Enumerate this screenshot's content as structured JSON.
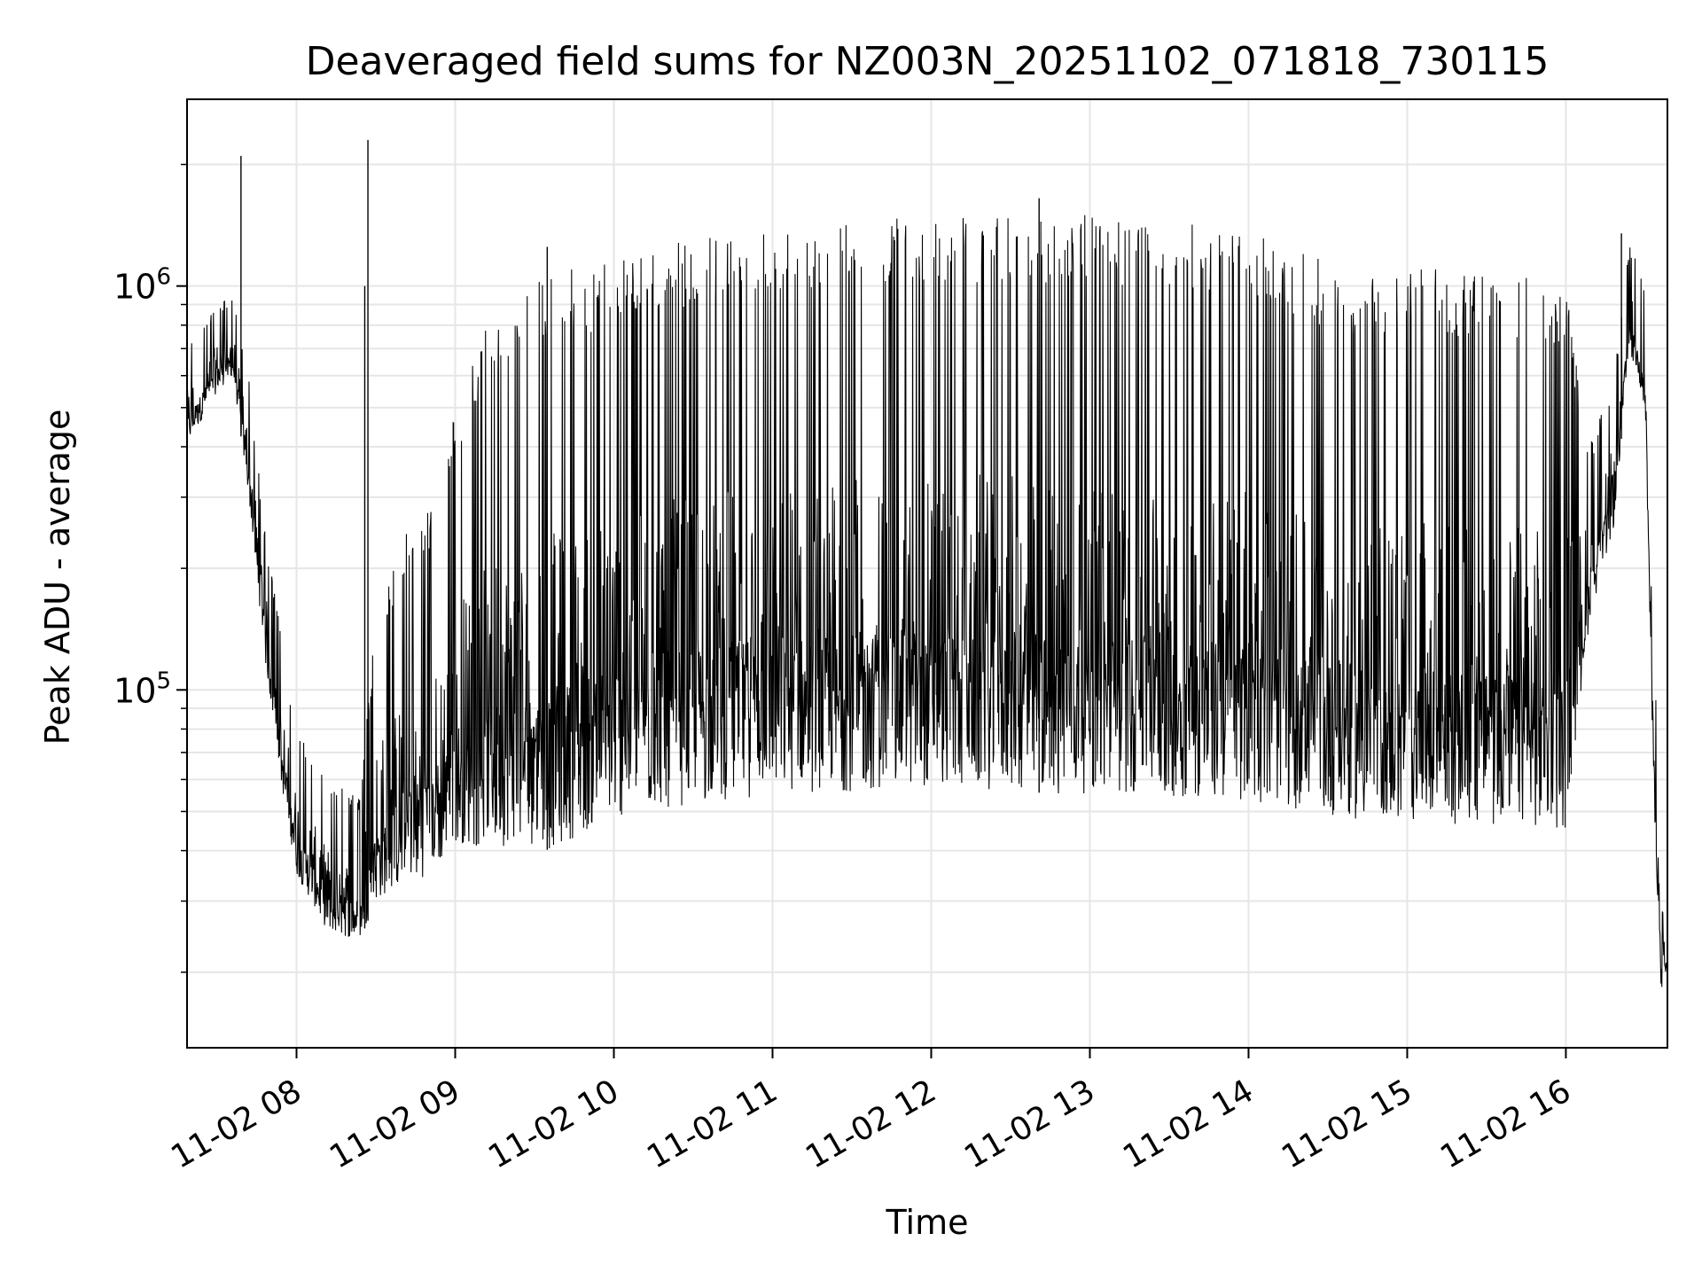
{
  "chart_data": {
    "type": "line",
    "title": "Deaveraged field sums for NZ003N_20251102_071818_730115",
    "xlabel": "Time",
    "ylabel": "Peak ADU - average",
    "yscale": "log",
    "grid": true,
    "x_unit": "hours since 2025-11-02 00:00",
    "xlim": [
      7.31,
      16.64
    ],
    "ylim": [
      13000,
      2900000
    ],
    "x_ticks": [
      {
        "value": 8,
        "label": "11-02 08"
      },
      {
        "value": 9,
        "label": "11-02 09"
      },
      {
        "value": 10,
        "label": "11-02 10"
      },
      {
        "value": 11,
        "label": "11-02 11"
      },
      {
        "value": 12,
        "label": "11-02 12"
      },
      {
        "value": 13,
        "label": "11-02 13"
      },
      {
        "value": 14,
        "label": "11-02 14"
      },
      {
        "value": 15,
        "label": "11-02 15"
      },
      {
        "value": 16,
        "label": "11-02 16"
      }
    ],
    "y_major_ticks": [
      {
        "value": 100000,
        "base": "10",
        "exp": "5"
      },
      {
        "value": 1000000,
        "base": "10",
        "exp": "6"
      }
    ],
    "series": [
      {
        "name": "Peak ADU - average",
        "color": "#000000",
        "envelope_points": [
          {
            "x": 7.31,
            "low": 400000,
            "high": 720000
          },
          {
            "x": 7.5,
            "low": 550000,
            "high": 900000
          },
          {
            "x": 7.6,
            "low": 600000,
            "high": 950000
          },
          {
            "x": 7.7,
            "low": 300000,
            "high": 600000
          },
          {
            "x": 7.8,
            "low": 120000,
            "high": 250000
          },
          {
            "x": 7.9,
            "low": 60000,
            "high": 140000
          },
          {
            "x": 8.0,
            "low": 35000,
            "high": 80000
          },
          {
            "x": 8.2,
            "low": 25000,
            "high": 60000
          },
          {
            "x": 8.4,
            "low": 24000,
            "high": 55000
          },
          {
            "x": 8.5,
            "low": 30000,
            "high": 150000
          },
          {
            "x": 8.7,
            "low": 33000,
            "high": 250000
          },
          {
            "x": 8.9,
            "low": 36000,
            "high": 300000
          },
          {
            "x": 9.0,
            "low": 42000,
            "high": 500000
          },
          {
            "x": 9.2,
            "low": 40000,
            "high": 800000
          },
          {
            "x": 9.4,
            "low": 42000,
            "high": 900000
          },
          {
            "x": 9.6,
            "low": 40000,
            "high": 1100000
          },
          {
            "x": 9.8,
            "low": 44000,
            "high": 1100000
          },
          {
            "x": 10.0,
            "low": 48000,
            "high": 1200000
          },
          {
            "x": 10.5,
            "low": 52000,
            "high": 1300000
          },
          {
            "x": 11.0,
            "low": 55000,
            "high": 1400000
          },
          {
            "x": 11.5,
            "low": 56000,
            "high": 1450000
          },
          {
            "x": 12.0,
            "low": 58000,
            "high": 1500000
          },
          {
            "x": 12.5,
            "low": 56000,
            "high": 1500000
          },
          {
            "x": 13.0,
            "low": 55000,
            "high": 1500000
          },
          {
            "x": 13.5,
            "low": 54000,
            "high": 1450000
          },
          {
            "x": 14.0,
            "low": 53000,
            "high": 1350000
          },
          {
            "x": 14.4,
            "low": 50000,
            "high": 1200000
          },
          {
            "x": 14.6,
            "low": 48000,
            "high": 1100000
          },
          {
            "x": 15.0,
            "low": 47000,
            "high": 1100000
          },
          {
            "x": 15.5,
            "low": 46000,
            "high": 1100000
          },
          {
            "x": 16.0,
            "low": 45000,
            "high": 1000000
          },
          {
            "x": 16.15,
            "low": 150000,
            "high": 400000
          },
          {
            "x": 16.3,
            "low": 250000,
            "high": 600000
          },
          {
            "x": 16.4,
            "low": 700000,
            "high": 1300000
          },
          {
            "x": 16.5,
            "low": 500000,
            "high": 1000000
          },
          {
            "x": 16.55,
            "low": 60000,
            "high": 200000
          },
          {
            "x": 16.6,
            "low": 18000,
            "high": 30000
          },
          {
            "x": 16.64,
            "low": 20000,
            "high": 28000
          }
        ],
        "spikes": [
          {
            "x": 7.65,
            "y": 2100000
          },
          {
            "x": 8.45,
            "y": 2300000
          },
          {
            "x": 8.43,
            "y": 1000000
          },
          {
            "x": 9.58,
            "y": 1250000
          },
          {
            "x": 12.68,
            "y": 1650000
          },
          {
            "x": 16.35,
            "y": 1350000
          }
        ]
      }
    ]
  }
}
